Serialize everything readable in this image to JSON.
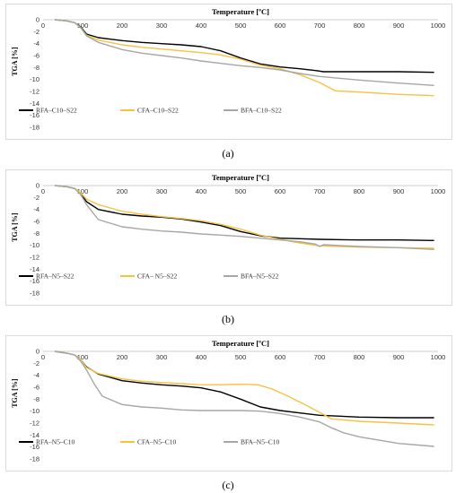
{
  "captions": [
    "(a)",
    "(b)",
    "(c)"
  ],
  "chart_data": [
    {
      "type": "line",
      "title": "Temperature [ºC]",
      "xlabel": "Temperature [ºC]",
      "ylabel": "TGA [%]",
      "xlim": [
        0,
        1000
      ],
      "ylim": [
        -18,
        0
      ],
      "x_ticks": [
        "0",
        "100",
        "200",
        "300",
        "400",
        "500",
        "600",
        "700",
        "800",
        "900",
        "1000"
      ],
      "y_ticks": [
        "0",
        "-2",
        "-4",
        "-6",
        "-8",
        "-10",
        "-12",
        "-14",
        "-16",
        "-18"
      ],
      "grid": false,
      "legend": "bottom-left",
      "series": [
        {
          "name": "RFA–C10–S22",
          "color": "#000000",
          "points": [
            [
              30,
              0
            ],
            [
              60,
              -0.2
            ],
            [
              80,
              -0.5
            ],
            [
              95,
              -1.2
            ],
            [
              110,
              -2.4
            ],
            [
              140,
              -3.0
            ],
            [
              200,
              -3.5
            ],
            [
              250,
              -3.8
            ],
            [
              300,
              -4.0
            ],
            [
              350,
              -4.2
            ],
            [
              400,
              -4.5
            ],
            [
              450,
              -5.2
            ],
            [
              500,
              -6.4
            ],
            [
              550,
              -7.4
            ],
            [
              600,
              -7.9
            ],
            [
              650,
              -8.2
            ],
            [
              690,
              -8.5
            ],
            [
              710,
              -8.7
            ],
            [
              800,
              -8.7
            ],
            [
              900,
              -8.7
            ],
            [
              990,
              -8.8
            ]
          ]
        },
        {
          "name": "CFA–C10–S22",
          "color": "#f5c242",
          "points": [
            [
              30,
              0
            ],
            [
              60,
              -0.2
            ],
            [
              80,
              -0.5
            ],
            [
              95,
              -1.3
            ],
            [
              110,
              -2.6
            ],
            [
              140,
              -3.4
            ],
            [
              200,
              -4.2
            ],
            [
              250,
              -4.6
            ],
            [
              300,
              -4.9
            ],
            [
              350,
              -5.2
            ],
            [
              400,
              -5.5
            ],
            [
              450,
              -5.9
            ],
            [
              500,
              -6.6
            ],
            [
              550,
              -7.6
            ],
            [
              600,
              -8.2
            ],
            [
              650,
              -9.2
            ],
            [
              700,
              -10.5
            ],
            [
              720,
              -11.2
            ],
            [
              740,
              -11.9
            ],
            [
              800,
              -12.1
            ],
            [
              900,
              -12.5
            ],
            [
              990,
              -12.7
            ]
          ]
        },
        {
          "name": "BFA–C10–S22",
          "color": "#a6a6a6",
          "points": [
            [
              30,
              0
            ],
            [
              60,
              -0.2
            ],
            [
              80,
              -0.5
            ],
            [
              95,
              -1.3
            ],
            [
              110,
              -2.7
            ],
            [
              140,
              -3.8
            ],
            [
              200,
              -5.0
            ],
            [
              250,
              -5.6
            ],
            [
              300,
              -6.0
            ],
            [
              350,
              -6.4
            ],
            [
              400,
              -6.9
            ],
            [
              450,
              -7.3
            ],
            [
              500,
              -7.7
            ],
            [
              550,
              -8.0
            ],
            [
              600,
              -8.4
            ],
            [
              650,
              -9.0
            ],
            [
              700,
              -9.5
            ],
            [
              800,
              -10.1
            ],
            [
              900,
              -10.6
            ],
            [
              990,
              -11.0
            ]
          ]
        }
      ]
    },
    {
      "type": "line",
      "title": "Temperature [ºC]",
      "xlabel": "Temperature [ºC]",
      "ylabel": "TGA [%]",
      "xlim": [
        0,
        1000
      ],
      "ylim": [
        -18,
        0
      ],
      "x_ticks": [
        "0",
        "100",
        "200",
        "300",
        "400",
        "500",
        "600",
        "700",
        "800",
        "900",
        "1000"
      ],
      "y_ticks": [
        "0",
        "-2",
        "-4",
        "-6",
        "-8",
        "-10",
        "-12",
        "-14",
        "-16",
        "-18"
      ],
      "grid": false,
      "legend": "bottom-left",
      "series": [
        {
          "name": "RFA–N5–S22",
          "color": "#000000",
          "points": [
            [
              30,
              0
            ],
            [
              60,
              -0.2
            ],
            [
              80,
              -0.5
            ],
            [
              95,
              -1.3
            ],
            [
              110,
              -2.7
            ],
            [
              140,
              -4.0
            ],
            [
              200,
              -4.8
            ],
            [
              250,
              -5.1
            ],
            [
              300,
              -5.3
            ],
            [
              350,
              -5.6
            ],
            [
              400,
              -6.1
            ],
            [
              450,
              -6.7
            ],
            [
              500,
              -7.7
            ],
            [
              550,
              -8.4
            ],
            [
              600,
              -8.8
            ],
            [
              650,
              -8.9
            ],
            [
              700,
              -9.0
            ],
            [
              800,
              -9.1
            ],
            [
              900,
              -9.1
            ],
            [
              990,
              -9.2
            ]
          ]
        },
        {
          "name": "CFA– N5–S22",
          "color": "#f5c242",
          "points": [
            [
              30,
              0
            ],
            [
              60,
              -0.2
            ],
            [
              80,
              -0.5
            ],
            [
              95,
              -1.2
            ],
            [
              110,
              -2.3
            ],
            [
              140,
              -3.2
            ],
            [
              200,
              -4.3
            ],
            [
              250,
              -4.8
            ],
            [
              300,
              -5.2
            ],
            [
              350,
              -5.5
            ],
            [
              400,
              -5.9
            ],
            [
              450,
              -6.5
            ],
            [
              500,
              -7.3
            ],
            [
              550,
              -8.3
            ],
            [
              600,
              -9.0
            ],
            [
              650,
              -9.6
            ],
            [
              700,
              -10.1
            ],
            [
              800,
              -10.3
            ],
            [
              900,
              -10.4
            ],
            [
              990,
              -10.5
            ]
          ]
        },
        {
          "name": "BFA–N5–S22",
          "color": "#a6a6a6",
          "points": [
            [
              30,
              0
            ],
            [
              60,
              -0.2
            ],
            [
              80,
              -0.5
            ],
            [
              95,
              -1.5
            ],
            [
              110,
              -3.2
            ],
            [
              140,
              -5.7
            ],
            [
              200,
              -6.9
            ],
            [
              250,
              -7.3
            ],
            [
              300,
              -7.6
            ],
            [
              350,
              -7.8
            ],
            [
              400,
              -8.1
            ],
            [
              450,
              -8.3
            ],
            [
              500,
              -8.5
            ],
            [
              550,
              -8.8
            ],
            [
              600,
              -9.1
            ],
            [
              650,
              -9.4
            ],
            [
              690,
              -9.8
            ],
            [
              700,
              -10.2
            ],
            [
              710,
              -9.9
            ],
            [
              800,
              -10.2
            ],
            [
              900,
              -10.4
            ],
            [
              990,
              -10.7
            ]
          ]
        }
      ]
    },
    {
      "type": "line",
      "title": "Temperature [ºC]",
      "xlabel": "Temperature [ºC]",
      "ylabel": "TGA [%]",
      "xlim": [
        0,
        1000
      ],
      "ylim": [
        -18,
        0
      ],
      "x_ticks": [
        "0",
        "100",
        "200",
        "300",
        "400",
        "500",
        "600",
        "700",
        "800",
        "900",
        "1000"
      ],
      "y_ticks": [
        "0",
        "-2",
        "-4",
        "-6",
        "-8",
        "-10",
        "-12",
        "-14",
        "-16",
        "-18"
      ],
      "grid": false,
      "legend": "bottom-left",
      "series": [
        {
          "name": "RFA–N5–C10",
          "color": "#000000",
          "points": [
            [
              30,
              0
            ],
            [
              60,
              -0.3
            ],
            [
              80,
              -0.6
            ],
            [
              95,
              -1.4
            ],
            [
              110,
              -2.6
            ],
            [
              140,
              -3.8
            ],
            [
              200,
              -4.9
            ],
            [
              250,
              -5.3
            ],
            [
              300,
              -5.6
            ],
            [
              350,
              -5.8
            ],
            [
              400,
              -6.1
            ],
            [
              450,
              -6.8
            ],
            [
              500,
              -8.0
            ],
            [
              550,
              -9.3
            ],
            [
              600,
              -9.9
            ],
            [
              650,
              -10.3
            ],
            [
              700,
              -10.7
            ],
            [
              800,
              -11.0
            ],
            [
              900,
              -11.1
            ],
            [
              990,
              -11.1
            ]
          ]
        },
        {
          "name": "CFA–N5–C10",
          "color": "#f5c242",
          "points": [
            [
              30,
              0
            ],
            [
              60,
              -0.3
            ],
            [
              80,
              -0.6
            ],
            [
              95,
              -1.4
            ],
            [
              110,
              -2.7
            ],
            [
              140,
              -3.7
            ],
            [
              200,
              -4.6
            ],
            [
              250,
              -5.0
            ],
            [
              300,
              -5.2
            ],
            [
              350,
              -5.4
            ],
            [
              400,
              -5.6
            ],
            [
              450,
              -5.6
            ],
            [
              500,
              -5.5
            ],
            [
              545,
              -5.6
            ],
            [
              580,
              -6.3
            ],
            [
              620,
              -7.5
            ],
            [
              660,
              -8.8
            ],
            [
              700,
              -10.2
            ],
            [
              730,
              -11.3
            ],
            [
              800,
              -11.7
            ],
            [
              900,
              -12.0
            ],
            [
              990,
              -12.3
            ]
          ]
        },
        {
          "name": "BFA–N5–C10",
          "color": "#a6a6a6",
          "points": [
            [
              30,
              0
            ],
            [
              60,
              -0.3
            ],
            [
              80,
              -0.6
            ],
            [
              95,
              -1.6
            ],
            [
              110,
              -3.1
            ],
            [
              130,
              -5.5
            ],
            [
              150,
              -7.5
            ],
            [
              200,
              -8.9
            ],
            [
              250,
              -9.3
            ],
            [
              300,
              -9.5
            ],
            [
              350,
              -9.8
            ],
            [
              400,
              -9.9
            ],
            [
              450,
              -9.9
            ],
            [
              500,
              -9.9
            ],
            [
              550,
              -10.0
            ],
            [
              600,
              -10.4
            ],
            [
              650,
              -11.0
            ],
            [
              700,
              -11.8
            ],
            [
              730,
              -12.8
            ],
            [
              760,
              -13.6
            ],
            [
              800,
              -14.3
            ],
            [
              900,
              -15.4
            ],
            [
              990,
              -15.9
            ]
          ]
        }
      ]
    }
  ]
}
